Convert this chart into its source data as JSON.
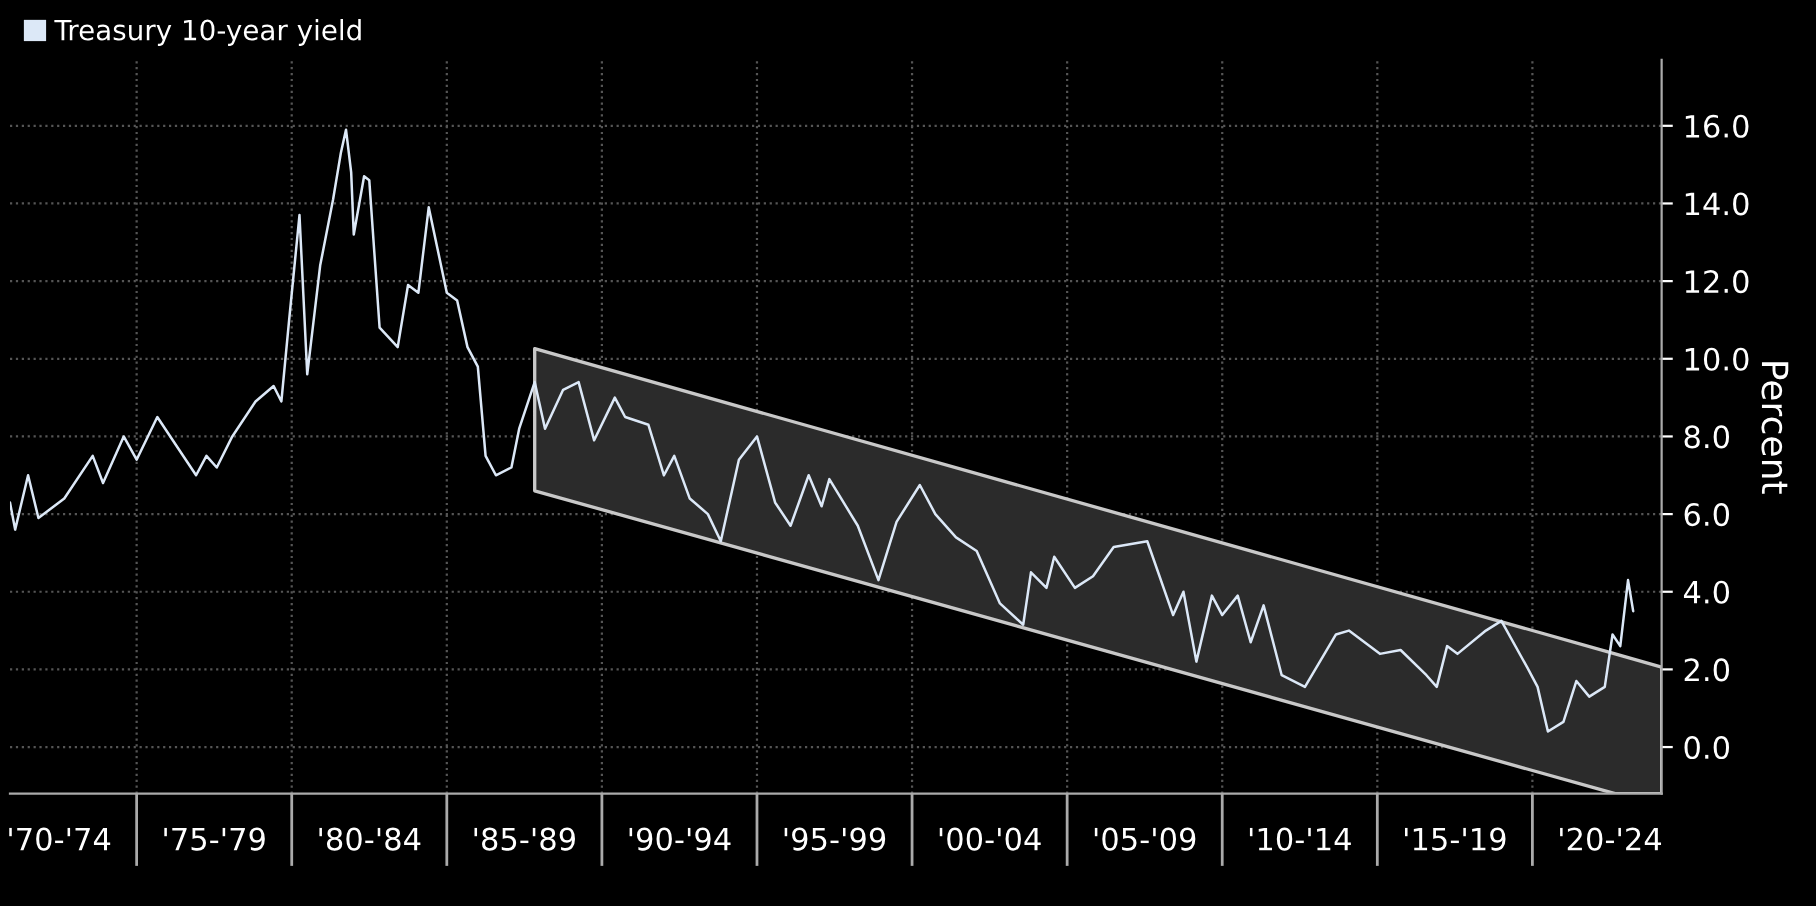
{
  "chart_data": {
    "type": "line",
    "x": [
      "1970-12",
      "1971-02",
      "1971-07",
      "1971-11",
      "1972-09",
      "1973-08",
      "1973-12",
      "1974-08",
      "1975-01",
      "1975-09",
      "1976-04",
      "1976-12",
      "1977-04",
      "1977-08",
      "1978-02",
      "1978-11",
      "1979-06",
      "1979-09",
      "1979-12",
      "1980-04",
      "1980-07",
      "1980-12",
      "1981-05",
      "1981-08",
      "1981-10",
      "1981-12",
      "1982-01",
      "1982-05",
      "1982-07",
      "1982-11",
      "1983-06",
      "1983-10",
      "1984-02",
      "1984-06",
      "1985-01",
      "1985-05",
      "1985-09",
      "1986-01",
      "1986-04",
      "1986-08",
      "1987-02",
      "1987-05",
      "1987-11",
      "1988-03",
      "1988-10",
      "1989-04",
      "1989-10",
      "1990-06",
      "1990-10",
      "1991-07",
      "1992-01",
      "1992-05",
      "1992-11",
      "1993-06",
      "1993-11",
      "1994-06",
      "1995-01",
      "1995-08",
      "1996-02",
      "1996-09",
      "1997-02",
      "1997-05",
      "1998-04",
      "1998-12",
      "1999-07",
      "2000-04",
      "2000-10",
      "2001-06",
      "2002-02",
      "2002-11",
      "2003-08",
      "2003-11",
      "2004-05",
      "2004-08",
      "2005-04",
      "2005-11",
      "2006-07",
      "2007-08",
      "2008-06",
      "2008-10",
      "2009-03",
      "2009-09",
      "2010-01",
      "2010-07",
      "2010-12",
      "2011-05",
      "2011-12",
      "2012-09",
      "2013-09",
      "2014-02",
      "2015-02",
      "2015-10",
      "2016-08",
      "2016-12",
      "2017-04",
      "2017-08",
      "2018-07",
      "2019-01",
      "2019-11",
      "2020-03",
      "2020-07",
      "2021-01",
      "2021-06",
      "2021-11",
      "2022-05",
      "2022-08",
      "2022-11",
      "2023-02",
      "2023-04"
    ],
    "series": [
      {
        "name": "Treasury 10-year yield",
        "color": "#dce8f7",
        "values": [
          6.3,
          5.6,
          7.0,
          5.9,
          6.4,
          7.5,
          6.8,
          8.0,
          7.4,
          8.5,
          7.8,
          7.0,
          7.5,
          7.2,
          8.0,
          8.9,
          9.3,
          8.9,
          11.0,
          13.7,
          9.6,
          12.4,
          14.1,
          15.3,
          15.9,
          14.8,
          13.2,
          14.7,
          14.6,
          10.8,
          10.3,
          11.9,
          11.7,
          13.9,
          11.7,
          11.5,
          10.3,
          9.8,
          7.5,
          7.0,
          7.2,
          8.2,
          9.4,
          8.2,
          9.2,
          9.4,
          7.9,
          9.0,
          8.5,
          8.3,
          7.0,
          7.5,
          6.4,
          6.0,
          5.3,
          7.4,
          8.0,
          6.3,
          5.7,
          7.0,
          6.2,
          6.9,
          5.7,
          4.3,
          5.8,
          6.75,
          6.0,
          5.4,
          5.05,
          3.7,
          3.15,
          4.5,
          4.1,
          4.9,
          4.1,
          4.4,
          5.15,
          5.3,
          3.4,
          4.0,
          2.2,
          3.9,
          3.4,
          3.9,
          2.7,
          3.65,
          1.85,
          1.55,
          2.9,
          3.0,
          2.4,
          2.5,
          1.85,
          1.55,
          2.6,
          2.4,
          3.0,
          3.25,
          2.05,
          1.55,
          0.4,
          0.65,
          1.7,
          1.3,
          1.55,
          2.9,
          2.6,
          4.3,
          3.5
        ]
      },
      {
        "type": "line",
        "color": "#2b2b2b",
        "x": [
          "1987-11",
          "2022-09",
          "2024-03"
        ],
        "values": [
          null,
          null,
          null
        ],
        "lower": [
          6.6,
          -1.2,
          -1.2
        ],
        "upper": [
          10.26,
          2.4,
          2.06
        ]
      }
    ],
    "ylabel": "Percent",
    "xlim": [
      "1970-12",
      "2024-03"
    ],
    "ylim": [
      -1.2,
      17.7
    ],
    "xticks": [
      {
        "value": "1972-07",
        "label": "'70-'74"
      },
      {
        "value": "1975-01",
        "label": null
      },
      {
        "value": "1977-07",
        "label": "'75-'79"
      },
      {
        "value": "1980-01",
        "label": null
      },
      {
        "value": "1982-07",
        "label": "'80-'84"
      },
      {
        "value": "1985-01",
        "label": null
      },
      {
        "value": "1987-07",
        "label": "'85-'89"
      },
      {
        "value": "1990-01",
        "label": null
      },
      {
        "value": "1992-07",
        "label": "'90-'94"
      },
      {
        "value": "1995-01",
        "label": null
      },
      {
        "value": "1997-07",
        "label": "'95-'99"
      },
      {
        "value": "2000-01",
        "label": null
      },
      {
        "value": "2002-07",
        "label": "'00-'04"
      },
      {
        "value": "2005-01",
        "label": null
      },
      {
        "value": "2007-07",
        "label": "'05-'09"
      },
      {
        "value": "2010-01",
        "label": null
      },
      {
        "value": "2012-07",
        "label": "'10-'14"
      },
      {
        "value": "2015-01",
        "label": null
      },
      {
        "value": "2017-07",
        "label": "'15-'19"
      },
      {
        "value": "2020-01",
        "label": null
      },
      {
        "value": "2022-07",
        "label": "'20-'24"
      }
    ],
    "yticks": [
      {
        "value": 0,
        "label": "0.0"
      },
      {
        "value": 2,
        "label": "2.0"
      },
      {
        "value": 4,
        "label": "4.0"
      },
      {
        "value": 6,
        "label": "6.0"
      },
      {
        "value": 8,
        "label": "8.0"
      },
      {
        "value": 10,
        "label": "10.0"
      },
      {
        "value": 12,
        "label": "12.0"
      },
      {
        "value": 14,
        "label": "14.0"
      },
      {
        "value": 16,
        "label": "16.0"
      }
    ],
    "grid": true,
    "legend": "top left"
  }
}
